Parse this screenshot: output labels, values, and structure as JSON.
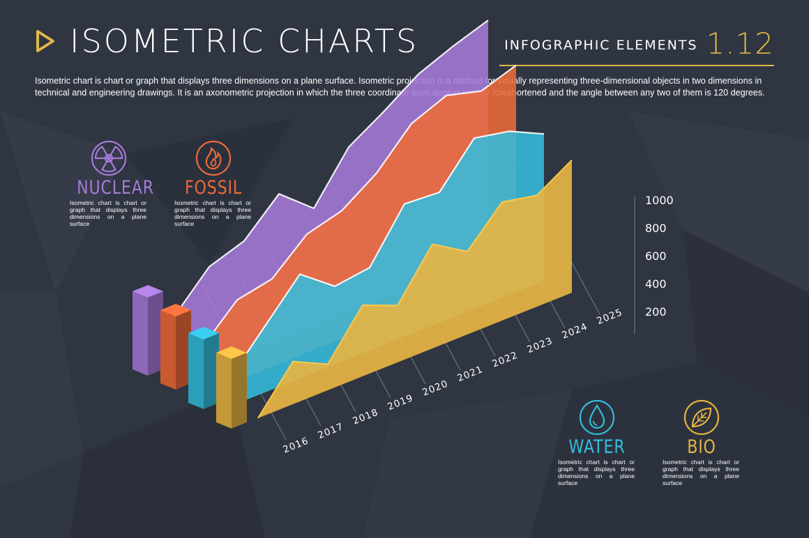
{
  "header": {
    "title": "ISOMETRIC CHARTS",
    "subtitle": "INFOGRAPHIC ELEMENTS",
    "version": "1.12",
    "play_icon": "play-triangle-icon"
  },
  "description": "Isometric chart is chart or graph that displays three dimensions on a plane surface. Isometric projection is a method for visually representing three-dimensional objects in two dimensions in technical and engineering drawings. It is an axonometric projection in which the three coordinate axes appear equally foreshortened and the angle between any two of them is 120 degrees.",
  "legend": [
    {
      "key": "nuclear",
      "label": "NUCLEAR",
      "icon": "radiation-icon",
      "color": "#a67ad8",
      "text": "Isometric chart is chart or graph that displays three dimensions on a plane surface"
    },
    {
      "key": "fossil",
      "label": "FOSSIL",
      "icon": "flame-icon",
      "color": "#ed6a39",
      "text": "Isometric chart is chart or graph that displays three dimensions on a plane surface"
    },
    {
      "key": "water",
      "label": "WATER",
      "icon": "water-drop-icon",
      "color": "#34bcdc",
      "text": "Isometric chart is chart or graph that displays three dimensions on a plane surface"
    },
    {
      "key": "bio",
      "label": "BIO",
      "icon": "leaf-icon",
      "color": "#e6b443",
      "text": "Isometric chart is chart or graph that displays three dimensions on a plane surface"
    }
  ],
  "colors": {
    "background": "#2f3541",
    "accent": "#e0b844",
    "nuclear": "#a67ad8",
    "fossil": "#ed6a39",
    "water": "#34bcdc",
    "bio": "#e6b443"
  },
  "chart_data": {
    "type": "area",
    "categories": [
      "2016",
      "2017",
      "2018",
      "2019",
      "2020",
      "2021",
      "2022",
      "2023",
      "2024",
      "2025"
    ],
    "y_ticks": [
      "200",
      "400",
      "600",
      "800",
      "1000"
    ],
    "ylim": [
      0,
      1000
    ],
    "grid": false,
    "legend_position": "left",
    "series": [
      {
        "name": "NUCLEAR",
        "color": "#a67ad8",
        "values": [
          280,
          430,
          480,
          620,
          500,
          700,
          790,
          890,
          950,
          1000
        ]
      },
      {
        "name": "FOSSIL",
        "color": "#ed6a39",
        "values": [
          200,
          340,
          370,
          500,
          540,
          640,
          790,
          850,
          810,
          860
        ]
      },
      {
        "name": "WATER",
        "color": "#34bcdc",
        "values": [
          120,
          280,
          440,
          330,
          350,
          560,
          550,
          720,
          690,
          620
        ]
      },
      {
        "name": "BIO",
        "color": "#e6b443",
        "values": [
          0,
          180,
          110,
          300,
          240,
          440,
          350,
          500,
          470,
          560
        ]
      }
    ]
  }
}
